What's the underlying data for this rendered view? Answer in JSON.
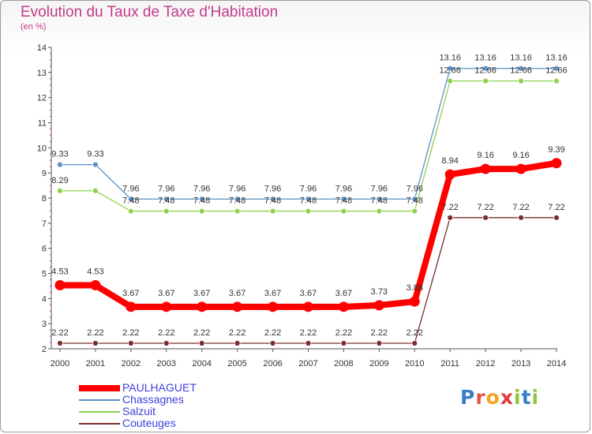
{
  "title": "Evolution du Taux de Taxe d'Habitation",
  "subtitle": "(en %)",
  "logo": {
    "text": "Proxiti",
    "letters": [
      {
        "ch": "P",
        "color": "#3a7ec9"
      },
      {
        "ch": "r",
        "color": "#e2564a"
      },
      {
        "ch": "o",
        "color": "#f0a423"
      },
      {
        "ch": "x",
        "color": "#e33b3b"
      },
      {
        "ch": "i",
        "color": "#8cc63f"
      },
      {
        "ch": "t",
        "color": "#3a7ec9"
      },
      {
        "ch": "i",
        "color": "#8cc63f"
      }
    ]
  },
  "chart_data": {
    "type": "line",
    "title": "Evolution du Taux de Taxe d'Habitation",
    "ylabel": "(en %)",
    "x": [
      "2000",
      "2001",
      "2002",
      "2003",
      "2004",
      "2005",
      "2006",
      "2007",
      "2008",
      "2009",
      "2010",
      "2011",
      "2012",
      "2013",
      "2014"
    ],
    "ylim": [
      2,
      14
    ],
    "yticks": [
      "2",
      "3",
      "4",
      "5",
      "6",
      "7",
      "8",
      "9",
      "10",
      "11",
      "12",
      "13",
      "14"
    ],
    "grid": false,
    "legend_position": "bottom-left",
    "series": [
      {
        "name": "PAULHAGUET",
        "color": "#ff0000",
        "values": [
          4.53,
          4.53,
          3.67,
          3.67,
          3.67,
          3.67,
          3.67,
          3.67,
          3.67,
          3.73,
          3.88,
          8.94,
          9.16,
          9.16,
          9.39
        ],
        "labels": [
          "4.53",
          "4.53",
          "3.67",
          "3.67",
          "3.67",
          "3.67",
          "3.67",
          "3.67",
          "3.67",
          "3.73",
          "3.88",
          "8.94",
          "9.16",
          "9.16",
          "9.39"
        ]
      },
      {
        "name": "Chassagnes",
        "color": "#5b93c7",
        "values": [
          9.33,
          9.33,
          7.96,
          7.96,
          7.96,
          7.96,
          7.96,
          7.96,
          7.96,
          7.96,
          7.96,
          13.16,
          13.16,
          13.16,
          13.16
        ],
        "labels": [
          "9.33",
          "9.33",
          "7.96",
          "7.96",
          "7.96",
          "7.96",
          "7.96",
          "7.96",
          "7.96",
          "7.96",
          "7.96",
          "13.16",
          "13.16",
          "13.16",
          "13.16"
        ]
      },
      {
        "name": "Salzuit",
        "color": "#8fd14f",
        "values": [
          8.29,
          8.29,
          7.48,
          7.48,
          7.48,
          7.48,
          7.48,
          7.48,
          7.48,
          7.48,
          7.48,
          12.66,
          12.66,
          12.66,
          12.66
        ],
        "labels": [
          "8.29",
          "",
          "7.48",
          "7.48",
          "7.48",
          "7.48",
          "7.48",
          "7.48",
          "7.48",
          "7.48",
          "7.48",
          "12.66",
          "12.66",
          "12.66",
          "12.66"
        ]
      },
      {
        "name": "Couteuges",
        "color": "#7a2e2e",
        "values": [
          2.22,
          2.22,
          2.22,
          2.22,
          2.22,
          2.22,
          2.22,
          2.22,
          2.22,
          2.22,
          2.22,
          7.22,
          7.22,
          7.22,
          7.22
        ],
        "labels": [
          "2.22",
          "2.22",
          "2.22",
          "2.22",
          "2.22",
          "2.22",
          "2.22",
          "2.22",
          "2.22",
          "2.22",
          "2.22",
          "7.22",
          "7.22",
          "7.22",
          "7.22"
        ]
      }
    ]
  }
}
